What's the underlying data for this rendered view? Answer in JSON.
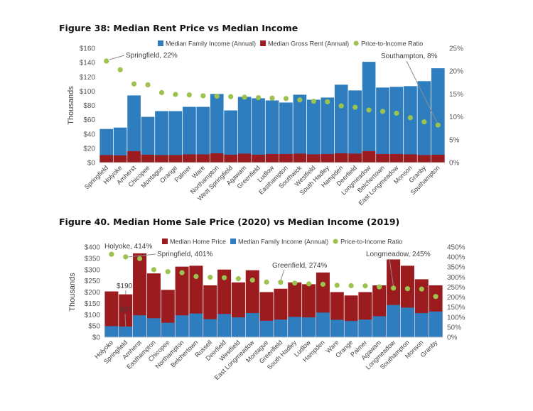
{
  "colors": {
    "income": "#2e7ebf",
    "rent": "#9b1b1e",
    "home": "#9b1b1e",
    "ratio": "#9cc24f",
    "axis": "#595959"
  },
  "chart_data": [
    {
      "type": "bar",
      "title": "Figure 38: Median Rent Price vs Median Income",
      "ylabel": "Thousands",
      "ylim": [
        0,
        160
      ],
      "y2lim": [
        0,
        25
      ],
      "yticks": [
        "$0",
        "$20",
        "$40",
        "$60",
        "$80",
        "$100",
        "$120",
        "$140",
        "$160"
      ],
      "y2ticks": [
        "0%",
        "5%",
        "10%",
        "15%",
        "20%",
        "25%"
      ],
      "legend_position": "top",
      "legend": [
        "Median Family Income (Annual)",
        "Median Gross Rent (Annual)",
        "Price-to-Income Ratio"
      ],
      "categories": [
        "Springfield",
        "Holyoke",
        "Amherst",
        "Chicopee",
        "Montague",
        "Orange",
        "Palmer",
        "Ware",
        "Northampton",
        "West Springfield",
        "Agawam",
        "Greenfield",
        "Ludlow",
        "Easthampton",
        "Southwick",
        "Westfield",
        "South Hadley",
        "Hampden",
        "Deerfield",
        "Longmeadow",
        "Belchertown",
        "East Longmeadow",
        "Monson",
        "Granby",
        "Southampton"
      ],
      "series": [
        {
          "name": "Median Family Income (Annual)",
          "values": [
            47,
            49,
            94,
            64,
            72,
            72,
            78,
            78,
            96,
            73,
            92,
            90,
            87,
            84,
            95,
            88,
            91,
            109,
            101,
            141,
            105,
            106,
            107,
            114,
            132
          ]
        },
        {
          "name": "Median Gross Rent (Annual)",
          "values": [
            10.5,
            10,
            16,
            11,
            10.5,
            10.5,
            11.5,
            11.5,
            13,
            11,
            12.5,
            11,
            12,
            12,
            12.5,
            11.5,
            12,
            13,
            12.5,
            16,
            12,
            12,
            11.5,
            10.5,
            11
          ]
        },
        {
          "name": "Price-to-Income Ratio",
          "axis": "secondary",
          "values": [
            22.2,
            20.3,
            17.2,
            17,
            15.3,
            14.9,
            14.8,
            14.6,
            14.5,
            14.4,
            14.3,
            14.2,
            14.1,
            14,
            13.7,
            13.4,
            13.3,
            12.4,
            12.1,
            11.5,
            11.2,
            10.8,
            9.8,
            8.9,
            8.2
          ]
        }
      ],
      "annotations": [
        {
          "text": "Springfield, 22%",
          "target": 0
        },
        {
          "text": "Southampton, 8%",
          "target": 24
        }
      ]
    },
    {
      "type": "bar",
      "title": "Figure 40. Median Home Sale Price (2020) vs Median Income (2019)",
      "ylabel": "Thousands",
      "ylim": [
        0,
        400
      ],
      "y2lim": [
        0,
        450
      ],
      "yticks": [
        "$0",
        "$50",
        "$100",
        "$150",
        "$200",
        "$250",
        "$300",
        "$350",
        "$400"
      ],
      "y2ticks": [
        "0%",
        "50%",
        "100%",
        "150%",
        "200%",
        "250%",
        "300%",
        "350%",
        "400%",
        "450%"
      ],
      "legend_position": "top",
      "legend": [
        "Median Home Price",
        "Median Family Income (Annual)",
        "Price-to-Income Ratio"
      ],
      "categories": [
        "Holyoke",
        "Springfield",
        "Amherst",
        "Easthampton",
        "Chicopee",
        "Northampton",
        "Belchertown",
        "Russell",
        "Deerfield",
        "Westfield",
        "East Longmeadow",
        "Montague",
        "Greenfield",
        "South Hadley",
        "Ludlow",
        "Hampden",
        "Ware",
        "Orange",
        "Palmer",
        "Agawam",
        "Longmeadow",
        "Southampton",
        "Monson",
        "Granby"
      ],
      "series": [
        {
          "name": "Median Home Price",
          "values": [
            203,
            190,
            372,
            283,
            210,
            313,
            317,
            230,
            300,
            243,
            297,
            200,
            215,
            243,
            235,
            287,
            200,
            185,
            200,
            230,
            345,
            317,
            257,
            230
          ]
        },
        {
          "name": "Median Family Income (Annual)",
          "values": [
            49,
            47,
            97,
            84,
            64,
            97,
            105,
            80,
            103,
            88,
            107,
            73,
            78,
            90,
            88,
            109,
            77,
            72,
            78,
            93,
            143,
            131,
            107,
            114
          ]
        },
        {
          "name": "Price-to-Income Ratio",
          "axis": "secondary",
          "values": [
            414,
            401,
            392,
            337,
            327,
            322,
            303,
            299,
            297,
            292,
            285,
            275,
            274,
            270,
            266,
            264,
            259,
            257,
            256,
            251,
            245,
            242,
            240,
            203
          ]
        }
      ],
      "annotations": [
        {
          "text": "Holyoke, 414%",
          "target": 0
        },
        {
          "text": "Springfield, 401%",
          "target": 1
        },
        {
          "text": "Greenfield, 274%",
          "target": 12
        },
        {
          "text": "Longmeadow, 245%",
          "target": 20
        },
        {
          "text": "$190",
          "target": 1
        },
        {
          "text": "$47",
          "target": 1
        }
      ]
    }
  ]
}
